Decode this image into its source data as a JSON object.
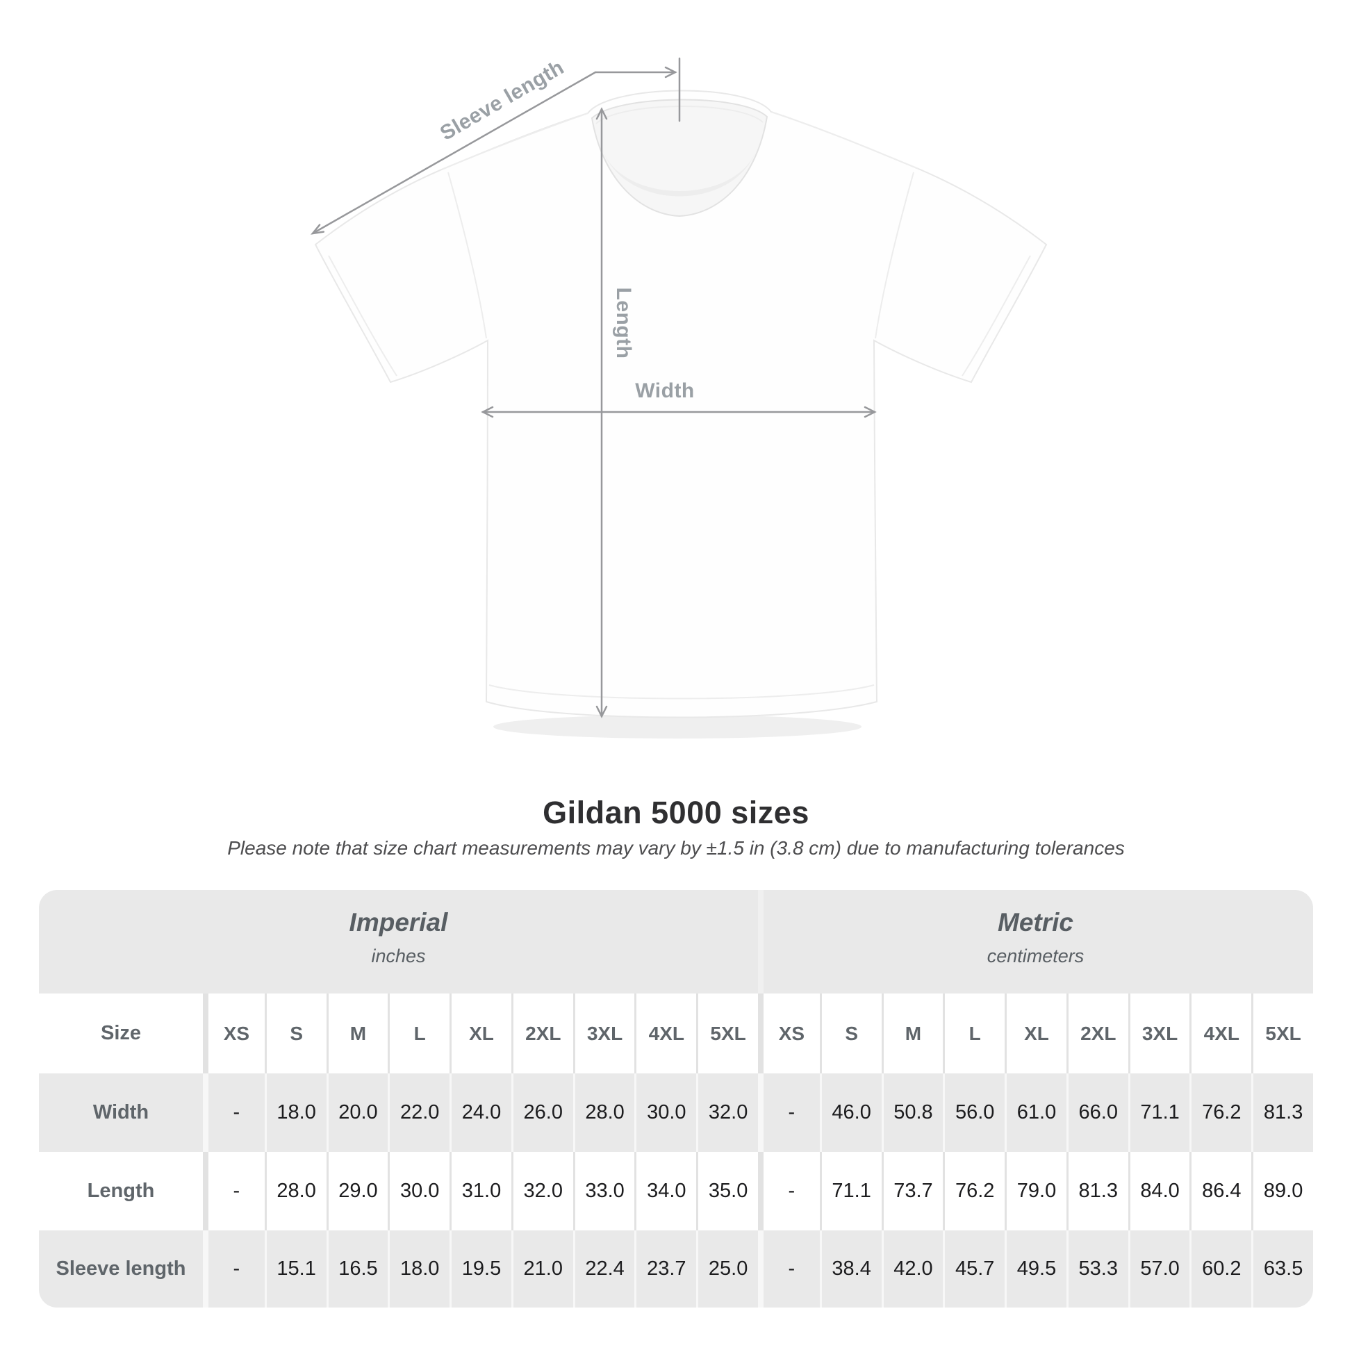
{
  "figure": {
    "sleeve_length_label": "Sleeve length",
    "length_label": "Length",
    "width_label": "Width"
  },
  "heading": {
    "title": "Gildan 5000 sizes",
    "subtitle": "Please note that size chart measurements may vary by ±1.5 in (3.8 cm) due to manufacturing tolerances"
  },
  "table": {
    "row_header": "Size",
    "sections": [
      {
        "name": "Imperial",
        "unit": "inches"
      },
      {
        "name": "Metric",
        "unit": "centimeters"
      }
    ],
    "sizes": [
      "XS",
      "S",
      "M",
      "L",
      "XL",
      "2XL",
      "3XL",
      "4XL",
      "5XL"
    ],
    "rows": [
      {
        "label": "Width",
        "imperial": [
          "-",
          "18.0",
          "20.0",
          "22.0",
          "24.0",
          "26.0",
          "28.0",
          "30.0",
          "32.0"
        ],
        "metric": [
          "-",
          "46.0",
          "50.8",
          "56.0",
          "61.0",
          "66.0",
          "71.1",
          "76.2",
          "81.3"
        ]
      },
      {
        "label": "Length",
        "imperial": [
          "-",
          "28.0",
          "29.0",
          "30.0",
          "31.0",
          "32.0",
          "33.0",
          "34.0",
          "35.0"
        ],
        "metric": [
          "-",
          "71.1",
          "73.7",
          "76.2",
          "79.0",
          "81.3",
          "84.0",
          "86.4",
          "89.0"
        ]
      },
      {
        "label": "Sleeve length",
        "imperial": [
          "-",
          "15.1",
          "16.5",
          "18.0",
          "19.5",
          "21.0",
          "22.4",
          "23.7",
          "25.0"
        ],
        "metric": [
          "-",
          "38.4",
          "42.0",
          "45.7",
          "49.5",
          "53.3",
          "57.0",
          "60.2",
          "63.5"
        ]
      }
    ]
  },
  "colors": {
    "row_gray": "#e9e9e9",
    "separator_on_white": "#e2e2e2",
    "separator_on_gray": "#f7f7f7",
    "dimension_line": "#97989b",
    "dimension_label": "#9aa0a5",
    "header_text": "#5f656a",
    "value_text": "#1c1c1e"
  },
  "chart_data": {
    "type": "table",
    "title": "Gildan 5000 sizes",
    "note": "Please note that size chart measurements may vary by ±1.5 in (3.8 cm) due to manufacturing tolerances",
    "column_groups": [
      "Imperial (inches)",
      "Metric (centimeters)"
    ],
    "columns": [
      "Size",
      "XS",
      "S",
      "M",
      "L",
      "XL",
      "2XL",
      "3XL",
      "4XL",
      "5XL",
      "XS",
      "S",
      "M",
      "L",
      "XL",
      "2XL",
      "3XL",
      "4XL",
      "5XL"
    ],
    "rows": [
      [
        "Width",
        "-",
        18.0,
        20.0,
        22.0,
        24.0,
        26.0,
        28.0,
        30.0,
        32.0,
        "-",
        46.0,
        50.8,
        56.0,
        61.0,
        66.0,
        71.1,
        76.2,
        81.3
      ],
      [
        "Length",
        "-",
        28.0,
        29.0,
        30.0,
        31.0,
        32.0,
        33.0,
        34.0,
        35.0,
        "-",
        71.1,
        73.7,
        76.2,
        79.0,
        81.3,
        84.0,
        86.4,
        89.0
      ],
      [
        "Sleeve length",
        "-",
        15.1,
        16.5,
        18.0,
        19.5,
        21.0,
        22.4,
        23.7,
        25.0,
        "-",
        38.4,
        42.0,
        45.7,
        49.5,
        53.3,
        57.0,
        60.2,
        63.5
      ]
    ]
  }
}
